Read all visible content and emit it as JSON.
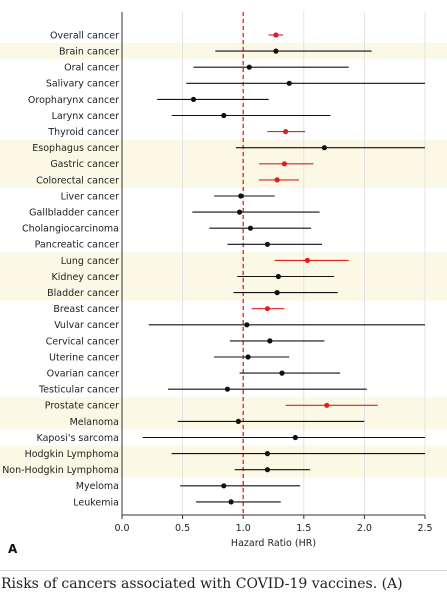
{
  "chart_data": {
    "type": "scatter",
    "subtype": "forest-plot",
    "xlabel": "Hazard Ratio (HR)",
    "xlim": [
      0.0,
      2.5
    ],
    "x_ticks": [
      "0.0",
      "0.5",
      "1.0",
      "1.5",
      "2.0",
      "2.5"
    ],
    "reference_line": 1.0,
    "panel_label": "A",
    "colors": {
      "significant": "#e02020",
      "non_significant": "#111111",
      "reference": "#e02020",
      "band": "#fbf8e6"
    },
    "rows": [
      {
        "label": "Overall cancer",
        "hr": 1.27,
        "lo": 1.21,
        "hi": 1.33,
        "significant": true
      },
      {
        "label": "Brain cancer",
        "hr": 1.27,
        "lo": 0.77,
        "hi": 2.06,
        "significant": false
      },
      {
        "label": "Oral cancer",
        "hr": 1.05,
        "lo": 0.59,
        "hi": 1.87,
        "significant": false
      },
      {
        "label": "Salivary cancer",
        "hr": 1.38,
        "lo": 0.53,
        "hi": 2.5,
        "significant": false
      },
      {
        "label": "Oropharynx cancer",
        "hr": 0.59,
        "lo": 0.29,
        "hi": 1.21,
        "significant": false
      },
      {
        "label": "Larynx cancer",
        "hr": 0.84,
        "lo": 0.41,
        "hi": 1.72,
        "significant": false
      },
      {
        "label": "Thyroid cancer",
        "hr": 1.35,
        "lo": 1.2,
        "hi": 1.51,
        "significant": true
      },
      {
        "label": "Esophagus cancer",
        "hr": 1.67,
        "lo": 0.94,
        "hi": 2.5,
        "significant": false
      },
      {
        "label": "Gastric cancer",
        "hr": 1.34,
        "lo": 1.13,
        "hi": 1.58,
        "significant": true
      },
      {
        "label": "Colorectal cancer",
        "hr": 1.28,
        "lo": 1.13,
        "hi": 1.46,
        "significant": true
      },
      {
        "label": "Liver cancer",
        "hr": 0.98,
        "lo": 0.76,
        "hi": 1.26,
        "significant": false
      },
      {
        "label": "Gallbladder cancer",
        "hr": 0.97,
        "lo": 0.58,
        "hi": 1.63,
        "significant": false
      },
      {
        "label": "Cholangiocarcinoma",
        "hr": 1.06,
        "lo": 0.72,
        "hi": 1.56,
        "significant": false
      },
      {
        "label": "Pancreatic cancer",
        "hr": 1.2,
        "lo": 0.87,
        "hi": 1.65,
        "significant": false
      },
      {
        "label": "Lung cancer",
        "hr": 1.53,
        "lo": 1.26,
        "hi": 1.87,
        "significant": true
      },
      {
        "label": "Kidney cancer",
        "hr": 1.29,
        "lo": 0.95,
        "hi": 1.75,
        "significant": false
      },
      {
        "label": "Bladder cancer",
        "hr": 1.28,
        "lo": 0.92,
        "hi": 1.78,
        "significant": false
      },
      {
        "label": "Breast cancer",
        "hr": 1.2,
        "lo": 1.07,
        "hi": 1.34,
        "significant": true
      },
      {
        "label": "Vulvar cancer",
        "hr": 1.03,
        "lo": 0.22,
        "hi": 2.5,
        "significant": false
      },
      {
        "label": "Cervical cancer",
        "hr": 1.22,
        "lo": 0.89,
        "hi": 1.67,
        "significant": false
      },
      {
        "label": "Uterine cancer",
        "hr": 1.04,
        "lo": 0.76,
        "hi": 1.38,
        "significant": false
      },
      {
        "label": "Ovarian cancer",
        "hr": 1.32,
        "lo": 0.97,
        "hi": 1.8,
        "significant": false
      },
      {
        "label": "Testicular cancer",
        "hr": 0.87,
        "lo": 0.38,
        "hi": 2.02,
        "significant": false
      },
      {
        "label": "Prostate cancer",
        "hr": 1.69,
        "lo": 1.35,
        "hi": 2.11,
        "significant": true
      },
      {
        "label": "Melanoma",
        "hr": 0.96,
        "lo": 0.46,
        "hi": 2.0,
        "significant": false
      },
      {
        "label": "Kaposi's sarcoma",
        "hr": 1.43,
        "lo": 0.17,
        "hi": 2.5,
        "significant": false
      },
      {
        "label": "Hodgkin Lymphoma",
        "hr": 1.2,
        "lo": 0.41,
        "hi": 2.5,
        "significant": false
      },
      {
        "label": "Non-Hodgkin Lymphoma",
        "hr": 1.2,
        "lo": 0.93,
        "hi": 1.55,
        "significant": false
      },
      {
        "label": "Myeloma",
        "hr": 0.84,
        "lo": 0.48,
        "hi": 1.47,
        "significant": false
      },
      {
        "label": "Leukemia",
        "hr": 0.9,
        "lo": 0.61,
        "hi": 1.31,
        "significant": false
      }
    ],
    "bands": [
      1,
      7,
      8,
      9,
      14,
      15,
      16,
      23,
      24,
      26,
      27
    ]
  },
  "caption": "Risks of cancers associated with COVID-19 vaccines. (A)"
}
